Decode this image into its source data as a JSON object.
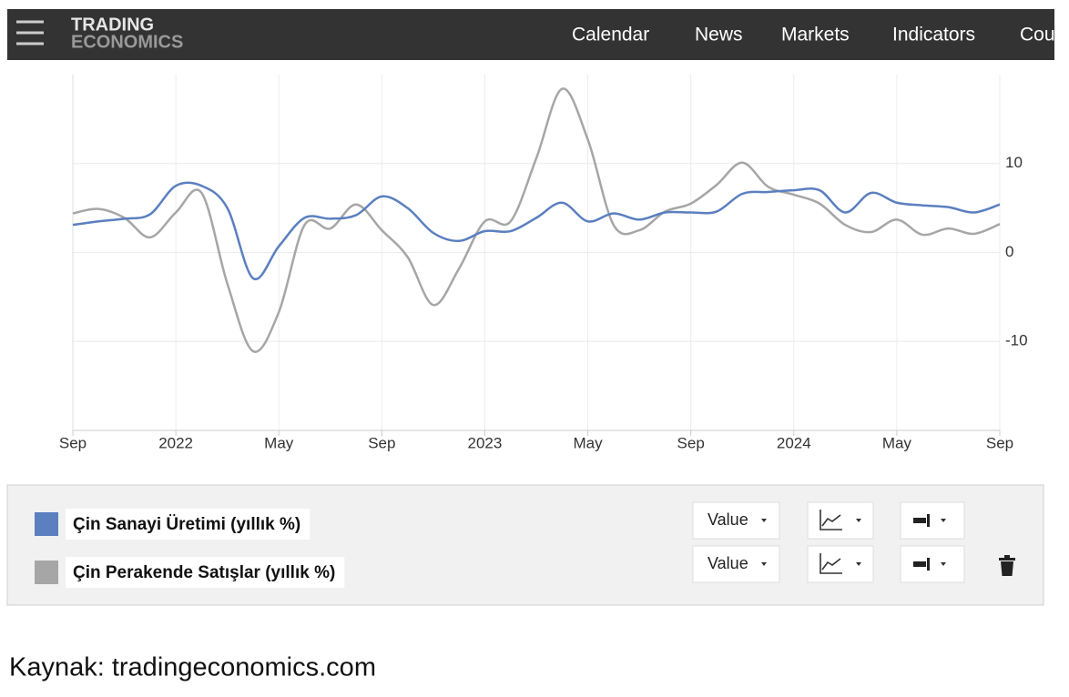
{
  "nav": {
    "logo_top": "TRADING",
    "logo_bottom": "ECONOMICS",
    "items": [
      "Calendar",
      "News",
      "Markets",
      "Indicators",
      "Cou"
    ]
  },
  "chart_data": {
    "type": "line",
    "x": [
      0,
      1,
      2,
      3,
      4,
      5,
      6,
      7,
      8,
      9,
      10,
      11,
      12,
      13,
      14,
      15,
      16,
      17,
      18,
      19,
      20,
      21,
      22,
      23,
      24,
      25,
      26,
      27,
      28,
      29,
      30,
      31,
      32,
      33,
      34,
      35,
      36
    ],
    "xlim": [
      0,
      36
    ],
    "xticks": [
      {
        "value": 0,
        "label": "Sep"
      },
      {
        "value": 4,
        "label": "2022"
      },
      {
        "value": 8,
        "label": "May"
      },
      {
        "value": 12,
        "label": "Sep"
      },
      {
        "value": 16,
        "label": "2023"
      },
      {
        "value": 20,
        "label": "May"
      },
      {
        "value": 24,
        "label": "Sep"
      },
      {
        "value": 28,
        "label": "2024"
      },
      {
        "value": 32,
        "label": "May"
      },
      {
        "value": 36,
        "label": "Sep"
      }
    ],
    "ylim": [
      -20,
      20
    ],
    "yticks": [
      -10,
      0,
      10
    ],
    "grid": true,
    "series": [
      {
        "name": "Çin Sanayi Üretimi (yıllık %)",
        "color": "#5b7fbf",
        "values": [
          3.1,
          3.5,
          3.8,
          4.3,
          7.5,
          7.5,
          5.0,
          -2.9,
          0.7,
          3.9,
          3.8,
          4.2,
          6.3,
          5.0,
          2.2,
          1.3,
          2.4,
          2.4,
          3.9,
          5.6,
          3.5,
          4.4,
          3.7,
          4.5,
          4.5,
          4.6,
          6.6,
          6.8,
          7.0,
          7.0,
          4.5,
          6.7,
          5.6,
          5.3,
          5.1,
          4.5,
          5.4
        ]
      },
      {
        "name": "Çin Perakende Satışlar (yıllık %)",
        "color": "#a6a6a6",
        "values": [
          4.4,
          4.9,
          3.9,
          1.7,
          4.5,
          6.7,
          -3.5,
          -11.1,
          -6.7,
          3.1,
          2.7,
          5.4,
          2.5,
          -0.5,
          -5.9,
          -1.8,
          3.5,
          3.5,
          10.6,
          18.4,
          12.7,
          3.1,
          2.5,
          4.6,
          5.5,
          7.6,
          10.1,
          7.4,
          6.5,
          5.5,
          3.1,
          2.3,
          3.7,
          2.0,
          2.7,
          2.1,
          3.2
        ]
      }
    ]
  },
  "controls": {
    "value_button": "Value"
  },
  "source": "Kaynak: tradingeconomics.com"
}
